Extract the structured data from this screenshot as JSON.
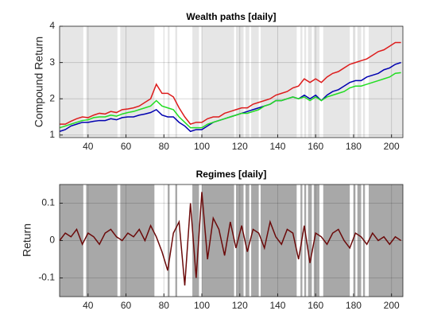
{
  "chart_data": [
    {
      "type": "line",
      "title": "Wealth paths [daily]",
      "ylabel": "Compound Return",
      "xlim": [
        25,
        206
      ],
      "ylim": [
        0.93,
        4
      ],
      "xticks": [
        40,
        60,
        80,
        100,
        120,
        140,
        160,
        180,
        200
      ],
      "yticks": [
        1,
        2,
        3,
        4
      ],
      "grid": true,
      "shade_color": "#e6e6e6",
      "regimes": [
        [
          25,
          37.5
        ],
        [
          39,
          55.5
        ],
        [
          57,
          75
        ],
        [
          82,
          83
        ],
        [
          86,
          87
        ],
        [
          95,
          98.5
        ],
        [
          100,
          117
        ],
        [
          118,
          122
        ],
        [
          123,
          125
        ],
        [
          126,
          130
        ],
        [
          131,
          150
        ],
        [
          152,
          153
        ],
        [
          154,
          155
        ],
        [
          156,
          158
        ],
        [
          159,
          162
        ],
        [
          164,
          178
        ],
        [
          180,
          181
        ],
        [
          182,
          184
        ],
        [
          185,
          186
        ],
        [
          188,
          206
        ]
      ],
      "x": [
        25,
        28,
        31,
        34,
        37,
        40,
        43,
        46,
        49,
        52,
        55,
        58,
        61,
        64,
        67,
        70,
        73,
        76,
        79,
        82,
        85,
        88,
        91,
        94,
        97,
        100,
        103,
        106,
        109,
        112,
        115,
        118,
        121,
        124,
        127,
        130,
        133,
        136,
        139,
        142,
        145,
        148,
        151,
        154,
        157,
        160,
        163,
        166,
        169,
        172,
        175,
        178,
        181,
        184,
        187,
        190,
        193,
        196,
        199,
        202,
        205
      ],
      "series": [
        {
          "color": "#dd1c1c",
          "values": [
            1.3,
            1.3,
            1.38,
            1.45,
            1.5,
            1.48,
            1.55,
            1.6,
            1.58,
            1.65,
            1.62,
            1.7,
            1.72,
            1.75,
            1.8,
            1.9,
            2.0,
            2.4,
            2.15,
            2.15,
            2.05,
            1.75,
            1.5,
            1.3,
            1.35,
            1.35,
            1.45,
            1.5,
            1.5,
            1.6,
            1.65,
            1.7,
            1.75,
            1.75,
            1.85,
            1.9,
            1.95,
            2.0,
            2.1,
            2.15,
            2.2,
            2.3,
            2.35,
            2.55,
            2.45,
            2.55,
            2.45,
            2.6,
            2.7,
            2.75,
            2.85,
            2.95,
            3.0,
            3.05,
            3.1,
            3.2,
            3.3,
            3.35,
            3.45,
            3.55,
            3.55
          ]
        },
        {
          "color": "#0000b0",
          "values": [
            1.1,
            1.15,
            1.25,
            1.3,
            1.35,
            1.35,
            1.38,
            1.4,
            1.4,
            1.45,
            1.42,
            1.48,
            1.5,
            1.5,
            1.55,
            1.58,
            1.62,
            1.7,
            1.55,
            1.5,
            1.5,
            1.35,
            1.25,
            1.1,
            1.15,
            1.15,
            1.25,
            1.35,
            1.4,
            1.45,
            1.5,
            1.55,
            1.6,
            1.65,
            1.7,
            1.75,
            1.8,
            1.85,
            1.95,
            1.95,
            2.0,
            2.05,
            2.0,
            2.1,
            2.0,
            2.1,
            1.95,
            2.1,
            2.2,
            2.25,
            2.35,
            2.45,
            2.5,
            2.5,
            2.6,
            2.65,
            2.7,
            2.8,
            2.85,
            2.95,
            3.0
          ]
        },
        {
          "color": "#22dd22",
          "values": [
            1.2,
            1.25,
            1.3,
            1.35,
            1.4,
            1.42,
            1.48,
            1.5,
            1.5,
            1.55,
            1.52,
            1.58,
            1.62,
            1.65,
            1.7,
            1.75,
            1.8,
            1.95,
            1.8,
            1.75,
            1.7,
            1.5,
            1.35,
            1.2,
            1.2,
            1.2,
            1.3,
            1.35,
            1.4,
            1.45,
            1.5,
            1.55,
            1.6,
            1.6,
            1.65,
            1.7,
            1.8,
            1.85,
            1.95,
            1.95,
            2.0,
            2.05,
            2.0,
            2.05,
            1.95,
            2.05,
            1.95,
            2.05,
            2.1,
            2.15,
            2.2,
            2.3,
            2.35,
            2.35,
            2.4,
            2.45,
            2.5,
            2.55,
            2.6,
            2.7,
            2.72
          ]
        }
      ]
    },
    {
      "type": "line",
      "title": "Regimes [daily]",
      "ylabel": "Return",
      "xlim": [
        25,
        206
      ],
      "ylim": [
        -0.15,
        0.15
      ],
      "xticks": [
        40,
        60,
        80,
        100,
        120,
        140,
        160,
        180,
        200
      ],
      "yticks": [
        -0.1,
        0,
        0.1
      ],
      "grid": true,
      "shade_color": "#a8a8a8",
      "regimes": [
        [
          25,
          37.5
        ],
        [
          39,
          55.5
        ],
        [
          57,
          75
        ],
        [
          82,
          83
        ],
        [
          86,
          87
        ],
        [
          95,
          98.5
        ],
        [
          100,
          117
        ],
        [
          118,
          122
        ],
        [
          123,
          125
        ],
        [
          126,
          130
        ],
        [
          131,
          150
        ],
        [
          152,
          153
        ],
        [
          154,
          155
        ],
        [
          156,
          158
        ],
        [
          159,
          162
        ],
        [
          164,
          178
        ],
        [
          180,
          181
        ],
        [
          182,
          184
        ],
        [
          185,
          186
        ],
        [
          188,
          206
        ]
      ],
      "x": [
        25,
        28,
        31,
        34,
        37,
        40,
        43,
        46,
        49,
        52,
        55,
        58,
        61,
        64,
        67,
        70,
        73,
        76,
        79,
        82,
        85,
        88,
        91,
        94,
        97,
        100,
        103,
        106,
        109,
        112,
        115,
        118,
        121,
        124,
        127,
        130,
        133,
        136,
        139,
        142,
        145,
        148,
        151,
        154,
        157,
        160,
        163,
        166,
        169,
        172,
        175,
        178,
        181,
        184,
        187,
        190,
        193,
        196,
        199,
        202,
        205
      ],
      "series": [
        {
          "color": "#6b0a0a",
          "values": [
            0,
            0.02,
            0.01,
            0.03,
            -0.01,
            0.02,
            0.01,
            -0.01,
            0.02,
            0.03,
            0.01,
            0,
            0.02,
            0.01,
            0.03,
            0,
            0.04,
            0.01,
            -0.03,
            -0.08,
            0.02,
            0.05,
            -0.12,
            0.1,
            -0.1,
            0.13,
            -0.05,
            0.06,
            0.03,
            -0.04,
            0.05,
            -0.02,
            0.04,
            -0.03,
            0.03,
            0.02,
            -0.02,
            0.05,
            0.01,
            -0.01,
            0.03,
            0.02,
            -0.05,
            0.04,
            -0.06,
            0.02,
            0.01,
            -0.01,
            0.02,
            0.03,
            0,
            -0.02,
            0.02,
            0.01,
            -0.01,
            0.02,
            0,
            0.01,
            -0.01,
            0.01,
            0
          ]
        }
      ]
    }
  ]
}
